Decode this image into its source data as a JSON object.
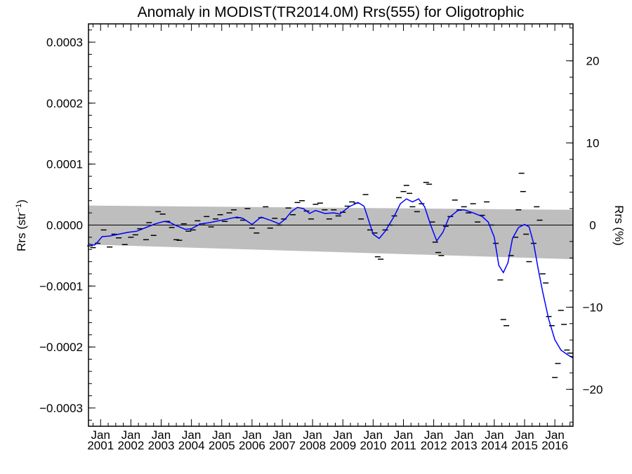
{
  "chart_data": {
    "type": "line",
    "title": "Anomaly in MODIST(TR2014.0M) Rrs(555) for Oligotrophic",
    "ylabel_left": "Rrs (str⁻¹)",
    "ylabel_right": "Rrs (%)",
    "ylim": [
      -0.00033,
      0.00033
    ],
    "y2lim": [
      -24.5,
      24.5
    ],
    "xlim": [
      2000.6,
      2016.6
    ],
    "y_ticks": [
      {
        "v": 0.0003,
        "label": "0.0003"
      },
      {
        "v": 0.0002,
        "label": "0.0002"
      },
      {
        "v": 0.0001,
        "label": "0.0001"
      },
      {
        "v": 0.0,
        "label": "0.0000"
      },
      {
        "v": -0.0001,
        "label": "−0.0001"
      },
      {
        "v": -0.0002,
        "label": "−0.0002"
      },
      {
        "v": -0.0003,
        "label": "−0.0003"
      }
    ],
    "y2_ticks": [
      {
        "v": 20,
        "label": "20"
      },
      {
        "v": 10,
        "label": "10"
      },
      {
        "v": 0,
        "label": "0"
      },
      {
        "v": -10,
        "label": "−10"
      },
      {
        "v": -20,
        "label": "−20"
      }
    ],
    "x_ticks": [
      {
        "v": 2001,
        "month": "Jan",
        "year": "2001"
      },
      {
        "v": 2002,
        "month": "Jan",
        "year": "2002"
      },
      {
        "v": 2003,
        "month": "Jan",
        "year": "2003"
      },
      {
        "v": 2004,
        "month": "Jan",
        "year": "2004"
      },
      {
        "v": 2005,
        "month": "Jan",
        "year": "2005"
      },
      {
        "v": 2006,
        "month": "Jan",
        "year": "2006"
      },
      {
        "v": 2007,
        "month": "Jan",
        "year": "2007"
      },
      {
        "v": 2008,
        "month": "Jan",
        "year": "2008"
      },
      {
        "v": 2009,
        "month": "Jan",
        "year": "2009"
      },
      {
        "v": 2010,
        "month": "Jan",
        "year": "2010"
      },
      {
        "v": 2011,
        "month": "Jan",
        "year": "2011"
      },
      {
        "v": 2012,
        "month": "Jan",
        "year": "2012"
      },
      {
        "v": 2013,
        "month": "Jan",
        "year": "2013"
      },
      {
        "v": 2014,
        "month": "Jan",
        "year": "2014"
      },
      {
        "v": 2015,
        "month": "Jan",
        "year": "2015"
      },
      {
        "v": 2016,
        "month": "Jan",
        "year": "2016"
      }
    ],
    "uncertainty_band": {
      "color": "#bebebe",
      "upper": [
        [
          2000.6,
          3.2e-05
        ],
        [
          2016.6,
          2.5e-05
        ]
      ],
      "lower": [
        [
          2000.6,
          -3.2e-05
        ],
        [
          2016.6,
          -5.6e-05
        ]
      ]
    },
    "zero_line": 0,
    "series": [
      {
        "kind": "smoothed-line",
        "color": "#0000ff",
        "points": [
          [
            2000.6,
            -3.1e-05
          ],
          [
            2000.8,
            -3.3e-05
          ],
          [
            2000.9,
            -2.8e-05
          ],
          [
            2001.05,
            -1.9e-05
          ],
          [
            2001.3,
            -1.8e-05
          ],
          [
            2001.6,
            -1.5e-05
          ],
          [
            2001.9,
            -1.2e-05
          ],
          [
            2002.2,
            -1e-05
          ],
          [
            2002.5,
            -4e-06
          ],
          [
            2002.8,
            2e-06
          ],
          [
            2003.1,
            6e-06
          ],
          [
            2003.3,
            4e-06
          ],
          [
            2003.5,
            -1e-06
          ],
          [
            2003.8,
            -7e-06
          ],
          [
            2004.0,
            -6e-06
          ],
          [
            2004.3,
            2e-06
          ],
          [
            2004.6,
            4e-06
          ],
          [
            2004.9,
            7e-06
          ],
          [
            2005.2,
            1e-05
          ],
          [
            2005.5,
            1.3e-05
          ],
          [
            2005.7,
            1.1e-05
          ],
          [
            2006.0,
            1e-06
          ],
          [
            2006.3,
            1.3e-05
          ],
          [
            2006.6,
            8e-06
          ],
          [
            2006.9,
            2e-06
          ],
          [
            2007.1,
            1e-05
          ],
          [
            2007.3,
            2.2e-05
          ],
          [
            2007.5,
            2.9e-05
          ],
          [
            2007.7,
            2.7e-05
          ],
          [
            2007.9,
            1.9e-05
          ],
          [
            2008.1,
            2.4e-05
          ],
          [
            2008.4,
            1.9e-05
          ],
          [
            2008.7,
            2e-05
          ],
          [
            2008.9,
            1.8e-05
          ],
          [
            2009.2,
            3e-05
          ],
          [
            2009.5,
            3.7e-05
          ],
          [
            2009.7,
            3.1e-05
          ],
          [
            2009.85,
            8e-06
          ],
          [
            2010.0,
            -1.5e-05
          ],
          [
            2010.2,
            -2.2e-05
          ],
          [
            2010.4,
            -1e-05
          ],
          [
            2010.7,
            1.5e-05
          ],
          [
            2010.9,
            3.5e-05
          ],
          [
            2011.1,
            4.3e-05
          ],
          [
            2011.3,
            3.8e-05
          ],
          [
            2011.5,
            4.3e-05
          ],
          [
            2011.7,
            3e-05
          ],
          [
            2011.9,
            0.0
          ],
          [
            2012.1,
            -2.6e-05
          ],
          [
            2012.3,
            -1.2e-05
          ],
          [
            2012.5,
            1.2e-05
          ],
          [
            2012.8,
            2.4e-05
          ],
          [
            2013.0,
            2.5e-05
          ],
          [
            2013.3,
            2e-05
          ],
          [
            2013.6,
            1.4e-05
          ],
          [
            2013.8,
            5e-06
          ],
          [
            2014.0,
            -2e-05
          ],
          [
            2014.15,
            -6.6e-05
          ],
          [
            2014.3,
            -7.8e-05
          ],
          [
            2014.45,
            -6.2e-05
          ],
          [
            2014.6,
            -2.2e-05
          ],
          [
            2014.8,
            -4e-06
          ],
          [
            2015.0,
            1e-06
          ],
          [
            2015.15,
            -3e-06
          ],
          [
            2015.3,
            -3e-05
          ],
          [
            2015.45,
            -7.2e-05
          ],
          [
            2015.6,
            -0.00011
          ],
          [
            2015.8,
            -0.000155
          ],
          [
            2016.0,
            -0.000188
          ],
          [
            2016.2,
            -0.000205
          ],
          [
            2016.4,
            -0.000212
          ],
          [
            2016.6,
            -0.000218
          ]
        ]
      },
      {
        "kind": "monthly-marks",
        "color": "#000000",
        "points": [
          [
            2000.65,
            -3.4e-05
          ],
          [
            2000.75,
            -3.7e-05
          ],
          [
            2000.9,
            -3e-05
          ],
          [
            2001.1,
            -8e-06
          ],
          [
            2001.3,
            -3.6e-05
          ],
          [
            2001.45,
            -1.5e-05
          ],
          [
            2001.6,
            -2.1e-05
          ],
          [
            2001.8,
            -3.2e-05
          ],
          [
            2002.0,
            -2e-05
          ],
          [
            2002.15,
            -1.6e-05
          ],
          [
            2002.3,
            -6e-06
          ],
          [
            2002.5,
            -2.4e-05
          ],
          [
            2002.6,
            4e-06
          ],
          [
            2002.75,
            -1.7e-05
          ],
          [
            2002.9,
            2.2e-05
          ],
          [
            2003.05,
            1.8e-05
          ],
          [
            2003.2,
            6e-06
          ],
          [
            2003.35,
            -4e-06
          ],
          [
            2003.5,
            -2.4e-05
          ],
          [
            2003.6,
            -2.5e-05
          ],
          [
            2003.75,
            2e-06
          ],
          [
            2003.9,
            -1e-05
          ],
          [
            2004.05,
            -8e-06
          ],
          [
            2004.2,
            7e-06
          ],
          [
            2004.35,
            2e-06
          ],
          [
            2004.5,
            1.4e-05
          ],
          [
            2004.65,
            -3e-06
          ],
          [
            2004.8,
            1e-05
          ],
          [
            2004.95,
            1.7e-05
          ],
          [
            2005.1,
            6e-06
          ],
          [
            2005.25,
            2e-05
          ],
          [
            2005.4,
            2.5e-05
          ],
          [
            2005.55,
            1.2e-05
          ],
          [
            2005.7,
            8e-06
          ],
          [
            2005.85,
            2.7e-05
          ],
          [
            2006.0,
            -5e-06
          ],
          [
            2006.15,
            -1.3e-05
          ],
          [
            2006.3,
            1.2e-05
          ],
          [
            2006.45,
            3e-05
          ],
          [
            2006.6,
            -5e-06
          ],
          [
            2006.75,
            1.1e-05
          ],
          [
            2006.9,
            0.0
          ],
          [
            2007.05,
            1e-05
          ],
          [
            2007.2,
            2.8e-05
          ],
          [
            2007.35,
            1.7e-05
          ],
          [
            2007.5,
            3.7e-05
          ],
          [
            2007.65,
            4e-05
          ],
          [
            2007.8,
            2.3e-05
          ],
          [
            2007.95,
            1e-05
          ],
          [
            2008.1,
            3.4e-05
          ],
          [
            2008.25,
            3.6e-05
          ],
          [
            2008.4,
            2.5e-05
          ],
          [
            2008.55,
            1e-05
          ],
          [
            2008.7,
            2.5e-05
          ],
          [
            2008.85,
            1.5e-05
          ],
          [
            2009.0,
            2.1e-05
          ],
          [
            2009.15,
            3.1e-05
          ],
          [
            2009.3,
            3.8e-05
          ],
          [
            2009.45,
            3.6e-05
          ],
          [
            2009.6,
            1e-05
          ],
          [
            2009.75,
            5e-05
          ],
          [
            2009.9,
            -8e-06
          ],
          [
            2010.05,
            -1.3e-05
          ],
          [
            2010.15,
            -5.2e-05
          ],
          [
            2010.25,
            -5.6e-05
          ],
          [
            2010.4,
            -8e-06
          ],
          [
            2010.55,
            0.0
          ],
          [
            2010.7,
            1.5e-05
          ],
          [
            2010.85,
            4.5e-05
          ],
          [
            2011.0,
            5.5e-05
          ],
          [
            2011.1,
            6.5e-05
          ],
          [
            2011.2,
            5.2e-05
          ],
          [
            2011.3,
            3e-05
          ],
          [
            2011.45,
            2.2e-05
          ],
          [
            2011.6,
            3.5e-05
          ],
          [
            2011.75,
            7e-05
          ],
          [
            2011.85,
            6.7e-05
          ],
          [
            2011.95,
            5e-06
          ],
          [
            2012.05,
            -2.8e-05
          ],
          [
            2012.15,
            -4.5e-05
          ],
          [
            2012.25,
            -5e-05
          ],
          [
            2012.4,
            -2e-06
          ],
          [
            2012.55,
            1.4e-05
          ],
          [
            2012.7,
            4.1e-05
          ],
          [
            2012.85,
            2.5e-05
          ],
          [
            2013.0,
            3e-05
          ],
          [
            2013.15,
            2e-05
          ],
          [
            2013.3,
            3.5e-05
          ],
          [
            2013.45,
            5e-06
          ],
          [
            2013.6,
            1.6e-05
          ],
          [
            2013.75,
            3.8e-05
          ],
          [
            2013.9,
            0.0
          ],
          [
            2014.05,
            -3e-05
          ],
          [
            2014.2,
            -9e-05
          ],
          [
            2014.3,
            -0.000155
          ],
          [
            2014.4,
            -0.000165
          ],
          [
            2014.55,
            -5e-05
          ],
          [
            2014.7,
            -2e-05
          ],
          [
            2014.8,
            2.5e-05
          ],
          [
            2014.9,
            8.5e-05
          ],
          [
            2014.95,
            5.5e-05
          ],
          [
            2015.05,
            -1.5e-05
          ],
          [
            2015.15,
            -6e-05
          ],
          [
            2015.3,
            -3e-05
          ],
          [
            2015.4,
            3e-05
          ],
          [
            2015.5,
            8e-06
          ],
          [
            2015.6,
            -8e-05
          ],
          [
            2015.7,
            -9.5e-05
          ],
          [
            2015.8,
            -0.00015
          ],
          [
            2015.9,
            -0.000165
          ],
          [
            2016.0,
            -0.00025
          ],
          [
            2016.1,
            -0.000227
          ],
          [
            2016.2,
            -0.00014
          ],
          [
            2016.3,
            -0.000163
          ],
          [
            2016.4,
            -0.000205
          ],
          [
            2016.5,
            -0.00021
          ]
        ]
      }
    ]
  }
}
